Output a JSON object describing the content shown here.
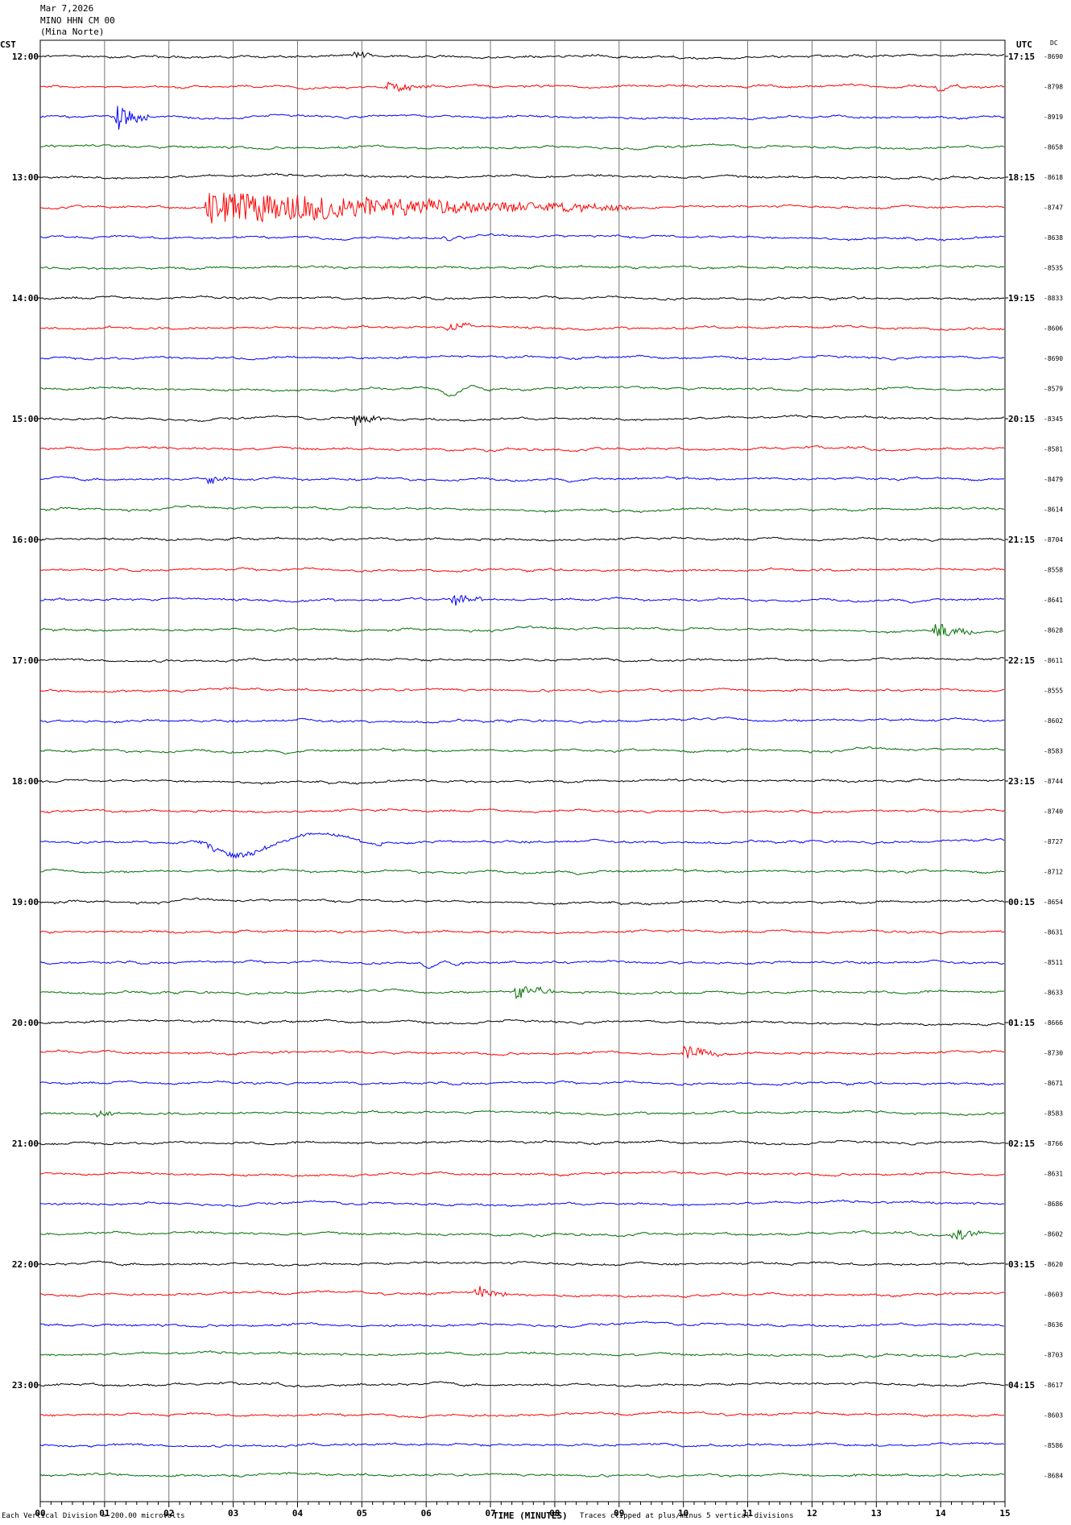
{
  "header": {
    "date": "Mar 7,2026",
    "station": "MINO HHN CM 00",
    "site": "(Mina Norte)"
  },
  "left_label": "CST",
  "right_label": "UTC",
  "dc_label": "DC",
  "footer": {
    "scale": "Each Vertical Division =  200.00 microvolts",
    "xlabel": "TIME (MINUTES)",
    "clip_note": "Traces clipped at plus/minus 5 vertical divisions"
  },
  "chart_data": {
    "type": "line",
    "title": "",
    "xlabel": "TIME (MINUTES)",
    "xlim": [
      0,
      15
    ],
    "x_ticks": [
      "00",
      "01",
      "02",
      "03",
      "04",
      "05",
      "06",
      "07",
      "08",
      "09",
      "10",
      "11",
      "12",
      "13",
      "14",
      "15"
    ],
    "trace_colors": [
      "#000000",
      "#ff0000",
      "#0000ff",
      "#007000"
    ],
    "hour_labels_cst": [
      "12:00",
      "13:00",
      "14:00",
      "15:00",
      "16:00",
      "17:00",
      "18:00",
      "19:00",
      "20:00",
      "21:00",
      "22:00",
      "23:00"
    ],
    "hour_labels_utc": [
      "17:15",
      "18:15",
      "19:15",
      "20:15",
      "21:15",
      "22:15",
      "23:15",
      "00:15",
      "01:15",
      "02:15",
      "03:15",
      "04:15"
    ],
    "dc_offsets": [
      "-8690",
      "-8798",
      "-8919",
      "-8658",
      "-8618",
      "-8747",
      "-8638",
      "-8535",
      "-8833",
      "-8606",
      "-8690",
      "-8579",
      "-8345",
      "-8581",
      "-8479",
      "-8614",
      "-8704",
      "-8558",
      "-8641",
      "-8628",
      "-8611",
      "-8555",
      "-8602",
      "-8583",
      "-8744",
      "-8740",
      "-8727",
      "-8712",
      "-8654",
      "-8631",
      "-8511",
      "-8633",
      "-8666",
      "-8730",
      "-8671",
      "-8583",
      "-8766",
      "-8631",
      "-8686",
      "-8602",
      "-8620",
      "-8603",
      "-8636",
      "-8703",
      "-8617",
      "-8603",
      "-8586",
      "-8684"
    ],
    "events": [
      {
        "trace": 0,
        "minute": 4.9,
        "amp": 0.35,
        "dur": 0.3
      },
      {
        "trace": 1,
        "minute": 5.4,
        "amp": 0.4,
        "dur": 0.8
      },
      {
        "trace": 1,
        "minute": 13.9,
        "amp": 0.6,
        "dur": 0.5,
        "slow": true
      },
      {
        "trace": 2,
        "minute": 1.2,
        "amp": 1.0,
        "dur": 0.5
      },
      {
        "trace": 5,
        "minute": 2.6,
        "amp": 1.4,
        "dur": 6.6
      },
      {
        "trace": 6,
        "minute": 6.3,
        "amp": 0.3,
        "dur": 0.3,
        "slow": true
      },
      {
        "trace": 9,
        "minute": 6.3,
        "amp": 0.4,
        "dur": 0.4
      },
      {
        "trace": 11,
        "minute": 6.2,
        "amp": 0.7,
        "dur": 0.8,
        "slow": true
      },
      {
        "trace": 12,
        "minute": 4.9,
        "amp": 0.7,
        "dur": 0.4
      },
      {
        "trace": 14,
        "minute": 2.6,
        "amp": 0.5,
        "dur": 0.3
      },
      {
        "trace": 18,
        "minute": 6.4,
        "amp": 0.7,
        "dur": 0.5
      },
      {
        "trace": 19,
        "minute": 13.9,
        "amp": 0.7,
        "dur": 0.6
      },
      {
        "trace": 26,
        "minute": 2.5,
        "amp": 1.6,
        "dur": 2.8,
        "slow": true
      },
      {
        "trace": 30,
        "minute": 5.9,
        "amp": 0.6,
        "dur": 0.6,
        "slow": true
      },
      {
        "trace": 31,
        "minute": 7.4,
        "amp": 0.7,
        "dur": 0.6
      },
      {
        "trace": 33,
        "minute": 10.0,
        "amp": 0.7,
        "dur": 0.6
      },
      {
        "trace": 35,
        "minute": 0.9,
        "amp": 0.35,
        "dur": 0.3
      },
      {
        "trace": 39,
        "minute": 14.2,
        "amp": 0.7,
        "dur": 0.4
      },
      {
        "trace": 41,
        "minute": 6.8,
        "amp": 0.5,
        "dur": 0.5
      }
    ]
  }
}
